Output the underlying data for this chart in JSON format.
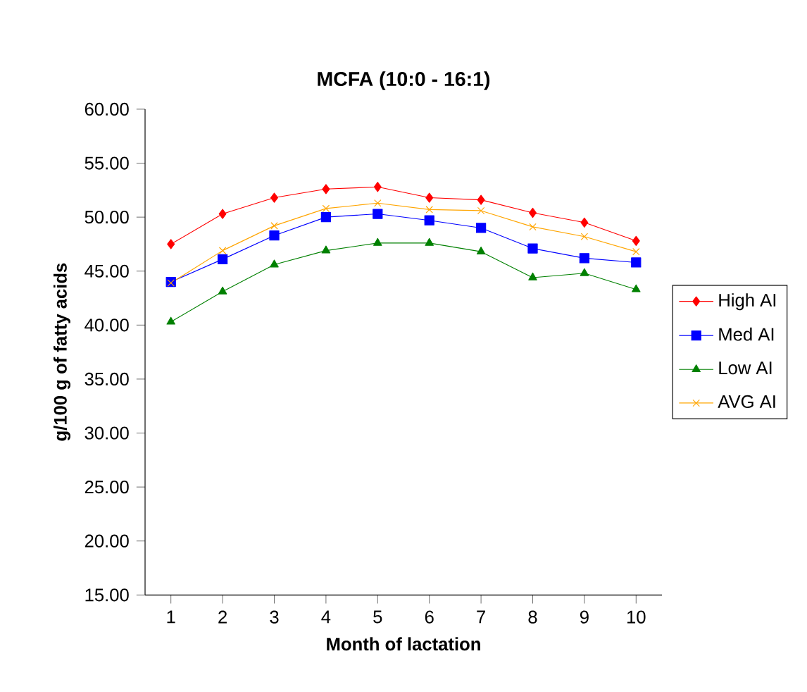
{
  "chart_data": {
    "type": "line",
    "title": "MCFA (10:0 - 16:1)",
    "xlabel": "Month of lactation",
    "ylabel": "g/100 g of fatty acids",
    "categories": [
      "1",
      "2",
      "3",
      "4",
      "5",
      "6",
      "7",
      "8",
      "9",
      "10"
    ],
    "ylim": [
      15,
      60
    ],
    "yticks": [
      {
        "value": 15,
        "label": "15.00"
      },
      {
        "value": 20,
        "label": "20.00"
      },
      {
        "value": 25,
        "label": "25.00"
      },
      {
        "value": 30,
        "label": "30.00"
      },
      {
        "value": 35,
        "label": "35.00"
      },
      {
        "value": 40,
        "label": "40.00"
      },
      {
        "value": 45,
        "label": "45.00"
      },
      {
        "value": 50,
        "label": "50.00"
      },
      {
        "value": 55,
        "label": "55.00"
      },
      {
        "value": 60,
        "label": "60.00"
      }
    ],
    "legend": "right",
    "grid": false,
    "series": [
      {
        "name": "High AI",
        "color": "#ff0000",
        "marker": "diamond",
        "values": [
          47.5,
          50.3,
          51.8,
          52.6,
          52.8,
          51.8,
          51.6,
          50.4,
          49.5,
          47.8
        ]
      },
      {
        "name": "Med AI",
        "color": "#0000ff",
        "marker": "square",
        "values": [
          44.0,
          46.1,
          48.3,
          50.0,
          50.3,
          49.7,
          49.0,
          47.1,
          46.2,
          45.8
        ]
      },
      {
        "name": "Low AI",
        "color": "#008000",
        "marker": "triangle",
        "values": [
          40.3,
          43.1,
          45.6,
          46.9,
          47.6,
          47.6,
          46.8,
          44.4,
          44.8,
          43.3
        ]
      },
      {
        "name": "AVG AI",
        "color": "#ffa500",
        "marker": "cross",
        "values": [
          43.9,
          46.9,
          49.2,
          50.8,
          51.3,
          50.7,
          50.6,
          49.1,
          48.2,
          46.8
        ]
      }
    ]
  }
}
